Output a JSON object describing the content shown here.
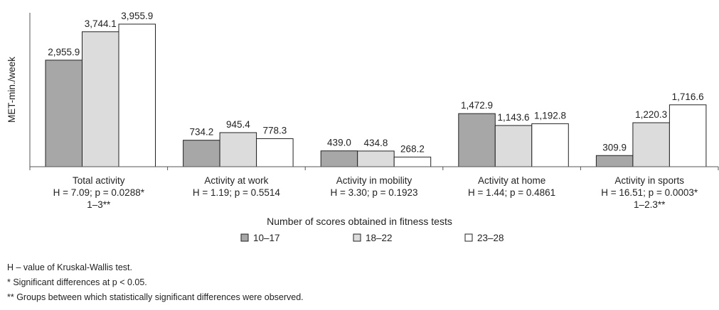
{
  "chart_data": {
    "type": "bar",
    "ylabel": "MET-min./week",
    "xlabel": "Number of scores obtained in fitness tests",
    "categories": [
      [
        "Total activity",
        "H = 7.09; p = 0.0288*",
        "1–3**"
      ],
      [
        "Activity at work",
        "H = 1.19; p = 0.5514"
      ],
      [
        "Activity in mobility",
        "H = 3.30; p = 0.1923"
      ],
      [
        "Activity at home",
        "H = 1.44; p = 0.4861"
      ],
      [
        "Activity in sports",
        "H = 16.51; p = 0.0003*",
        "1–2.3**"
      ]
    ],
    "series": [
      {
        "name": "10–17",
        "values": [
          2955.9,
          734.2,
          439.0,
          1472.9,
          309.9
        ],
        "labels": [
          "2,955.9",
          "734.2",
          "439.0",
          "1,472.9",
          "309.9"
        ],
        "color": "#a7a7a7"
      },
      {
        "name": "18–22",
        "values": [
          3744.1,
          945.4,
          434.8,
          1143.6,
          1220.3
        ],
        "labels": [
          "3,744.1",
          "945.4",
          "434.8",
          "1,143.6",
          "1,220.3"
        ],
        "color": "#dcdcdc"
      },
      {
        "name": "23–28",
        "values": [
          3955.9,
          778.3,
          268.2,
          1192.8,
          1716.6
        ],
        "labels": [
          "3,955.9",
          "778.3",
          "268.2",
          "1,192.8",
          "1,716.6"
        ],
        "color": "#ffffff"
      }
    ],
    "ylim": [
      0,
      3955.9
    ],
    "grid": false,
    "legend": "bottom-center"
  },
  "footnotes": [
    "H – value of Kruskal-Wallis test.",
    "* Significant differences at p < 0.05.",
    "** Groups between which statistically significant differences were observed."
  ]
}
